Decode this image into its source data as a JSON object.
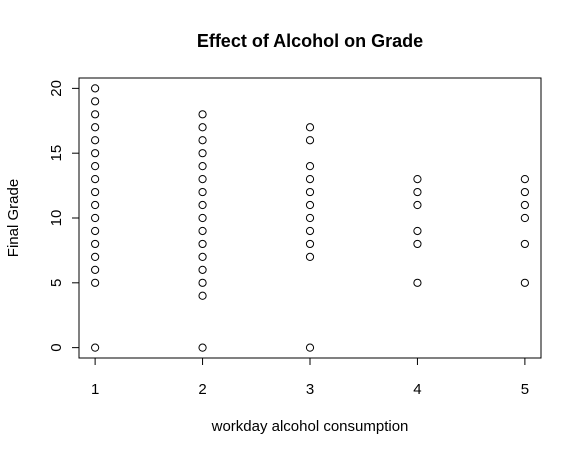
{
  "chart_data": {
    "type": "scatter",
    "title": "Effect of Alcohol on Grade",
    "xlabel": "workday alcohol consumption",
    "ylabel": "Final Grade",
    "xlim": [
      0.85,
      5.15
    ],
    "ylim": [
      -0.8,
      20.8
    ],
    "xticks": [
      1,
      2,
      3,
      4,
      5
    ],
    "yticks": [
      0,
      5,
      10,
      15,
      20
    ],
    "grid": false,
    "legend": "none",
    "marker": "open-circle",
    "points": [
      {
        "x": 1,
        "y": [
          0,
          5,
          6,
          7,
          8,
          9,
          10,
          11,
          12,
          13,
          14,
          15,
          16,
          17,
          18,
          19,
          20
        ]
      },
      {
        "x": 2,
        "y": [
          0,
          4,
          5,
          6,
          7,
          8,
          9,
          10,
          11,
          12,
          13,
          14,
          15,
          16,
          17,
          18
        ]
      },
      {
        "x": 3,
        "y": [
          0,
          7,
          8,
          9,
          10,
          11,
          12,
          13,
          14,
          16,
          17
        ]
      },
      {
        "x": 4,
        "y": [
          5,
          8,
          9,
          11,
          12,
          13
        ]
      },
      {
        "x": 5,
        "y": [
          5,
          8,
          10,
          11,
          12,
          13
        ]
      }
    ]
  }
}
